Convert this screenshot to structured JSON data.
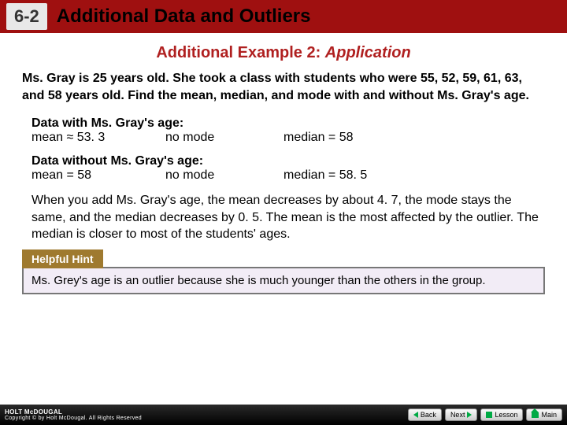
{
  "header": {
    "lesson_num": "6-2",
    "lesson_title": "Additional Data and Outliers"
  },
  "example": {
    "title_prefix": "Additional Example 2: ",
    "title_app": "Application"
  },
  "problem": "Ms. Gray is 25 years old. She took a class with students who were 55, 52, 59, 61, 63, and 58 years old. Find the mean, median, and mode with and without Ms. Gray's age.",
  "with": {
    "label": "Data with Ms. Gray's age:",
    "mean": "mean ≈ 53. 3",
    "mode": "no mode",
    "median": "median = 58"
  },
  "without": {
    "label": "Data without Ms. Gray's age:",
    "mean": "mean = 58",
    "mode": "no mode",
    "median": "median = 58. 5"
  },
  "explain": "When you add Ms. Gray's age, the mean decreases by about 4. 7, the mode stays the same, and the median decreases by 0. 5. The mean is the most affected by the outlier. The median is closer to most of the students' ages.",
  "hint": {
    "tab": "Helpful Hint",
    "text": "Ms. Grey's age is an outlier because she is much younger than the others in the group."
  },
  "footer": {
    "logo_top": "HOLT McDOUGAL",
    "logo_sub": "Copyright © by Holt McDougal. All Rights Reserved",
    "back": "Back",
    "next": "Next",
    "lesson": "Lesson",
    "main": "Main"
  },
  "colors": {
    "header_bg": "#9f1010",
    "accent_text": "#b02020",
    "hint_tab_bg": "#9f7a2f",
    "hint_box_bg": "#f2ecf6",
    "footer_bg": "#000000",
    "nav_icon": "#00aa44"
  }
}
